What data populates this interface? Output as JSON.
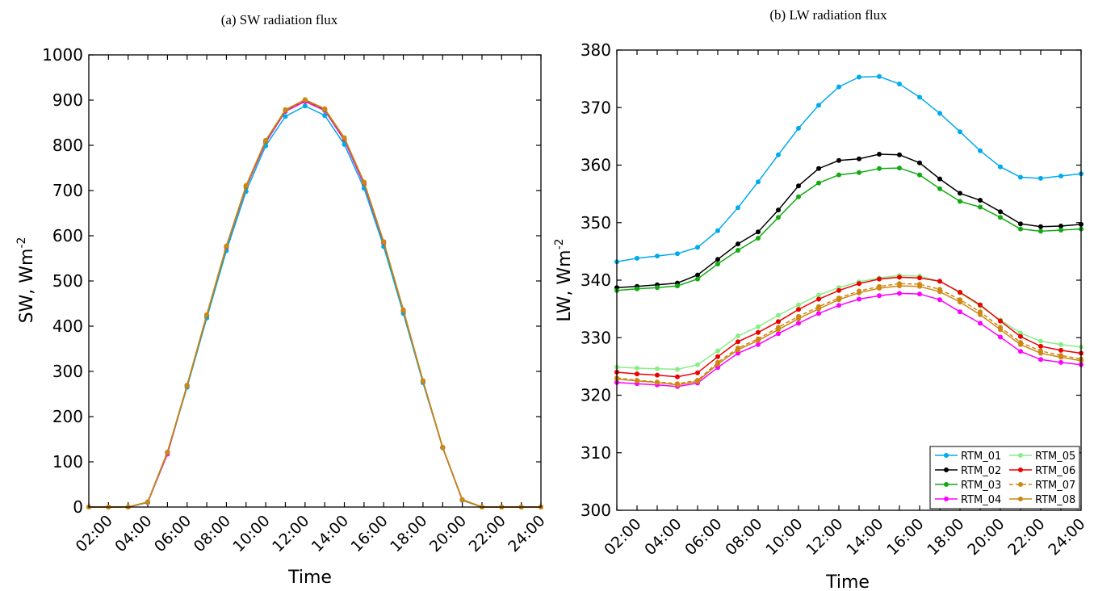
{
  "chart_data": [
    {
      "type": "line",
      "title": "(a) SW radiation flux",
      "xlabel": "Time",
      "ylabel_base": "SW, Wm",
      "ylabel_sup": "-2",
      "x": [
        "01:00",
        "02:00",
        "03:00",
        "04:00",
        "05:00",
        "06:00",
        "07:00",
        "08:00",
        "09:00",
        "10:00",
        "11:00",
        "12:00",
        "13:00",
        "14:00",
        "15:00",
        "16:00",
        "17:00",
        "18:00",
        "19:00",
        "20:00",
        "21:00",
        "22:00",
        "23:00",
        "24:00"
      ],
      "xticks": [
        "02:00",
        "04:00",
        "06:00",
        "08:00",
        "10:00",
        "12:00",
        "14:00",
        "16:00",
        "18:00",
        "20:00",
        "22:00",
        "24:00"
      ],
      "ylim": [
        0,
        1000
      ],
      "yticks": [
        "0",
        "100",
        "200",
        "300",
        "400",
        "500",
        "600",
        "700",
        "800",
        "900",
        "1000"
      ],
      "grid": false,
      "series": [
        {
          "name": "RTM_04",
          "color": "#ff00ff",
          "dashed": false,
          "values": [
            0,
            0,
            0,
            10,
            117,
            268,
            423,
            574,
            707,
            806,
            875,
            897,
            877,
            811,
            713,
            583,
            432,
            277,
            131,
            15,
            0,
            0,
            0,
            0
          ]
        },
        {
          "name": "RTM_01",
          "color": "#00aaee",
          "dashed": false,
          "values": [
            0,
            0,
            0,
            10,
            120,
            265,
            418,
            567,
            698,
            799,
            864,
            887,
            866,
            802,
            705,
            576,
            428,
            275,
            131,
            15,
            0,
            0,
            0,
            0
          ]
        },
        {
          "name": "RTM_02",
          "color": "#000000",
          "dashed": false,
          "values": [
            0,
            0,
            0,
            11,
            121,
            269,
            424,
            576,
            710,
            810,
            878,
            900,
            880,
            816,
            718,
            586,
            435,
            279,
            132,
            16,
            0,
            0,
            0,
            0
          ]
        },
        {
          "name": "RTM_03",
          "color": "#11aa11",
          "dashed": false,
          "values": [
            0,
            0,
            0,
            11,
            121,
            269,
            424,
            576,
            709,
            809,
            877,
            900,
            879,
            815,
            717,
            586,
            434,
            279,
            132,
            16,
            0,
            0,
            0,
            0
          ]
        },
        {
          "name": "RTM_05",
          "color": "#88ee88",
          "dashed": false,
          "values": [
            0,
            0,
            0,
            11,
            121,
            269,
            425,
            577,
            710,
            810,
            878,
            901,
            880,
            816,
            718,
            587,
            435,
            279,
            132,
            16,
            0,
            0,
            0,
            0
          ]
        },
        {
          "name": "RTM_06",
          "color": "#ee0000",
          "dashed": false,
          "values": [
            0,
            0,
            0,
            11,
            121,
            269,
            425,
            577,
            710,
            810,
            878,
            900,
            880,
            816,
            718,
            586,
            435,
            279,
            132,
            16,
            0,
            0,
            0,
            0
          ]
        },
        {
          "name": "RTM_07",
          "color": "#cc8811",
          "dashed": true,
          "values": [
            0,
            0,
            0,
            11,
            121,
            269,
            425,
            577,
            710,
            810,
            878,
            900,
            880,
            816,
            718,
            586,
            435,
            279,
            132,
            16,
            0,
            0,
            0,
            0
          ]
        },
        {
          "name": "RTM_08",
          "color": "#cc8811",
          "dashed": false,
          "values": [
            0,
            0,
            0,
            11,
            121,
            269,
            425,
            577,
            711,
            811,
            879,
            901,
            881,
            817,
            719,
            587,
            436,
            279,
            132,
            16,
            0,
            0,
            0,
            0
          ]
        }
      ]
    },
    {
      "type": "line",
      "title": "(b) LW radiation flux",
      "xlabel": "Time",
      "ylabel_base": "LW, Wm",
      "ylabel_sup": "-2",
      "x": [
        "01:00",
        "02:00",
        "03:00",
        "04:00",
        "05:00",
        "06:00",
        "07:00",
        "08:00",
        "09:00",
        "10:00",
        "11:00",
        "12:00",
        "13:00",
        "14:00",
        "15:00",
        "16:00",
        "17:00",
        "18:00",
        "19:00",
        "20:00",
        "21:00",
        "22:00",
        "23:00",
        "24:00"
      ],
      "xticks": [
        "02:00",
        "04:00",
        "06:00",
        "08:00",
        "10:00",
        "12:00",
        "14:00",
        "16:00",
        "18:00",
        "20:00",
        "22:00",
        "24:00"
      ],
      "ylim": [
        300,
        380
      ],
      "yticks": [
        "300",
        "310",
        "320",
        "330",
        "340",
        "350",
        "360",
        "370",
        "380"
      ],
      "grid": false,
      "legend_position": "bottom-right",
      "legend": [
        "RTM_01",
        "RTM_05",
        "RTM_02",
        "RTM_06",
        "RTM_03",
        "RTM_07",
        "RTM_04",
        "RTM_08"
      ],
      "series": [
        {
          "name": "RTM_01",
          "color": "#00aaee",
          "dashed": false,
          "values": [
            343.2,
            343.8,
            344.2,
            344.6,
            345.7,
            348.6,
            352.6,
            357.1,
            361.8,
            366.4,
            370.4,
            373.6,
            375.3,
            375.4,
            374.1,
            371.8,
            369.0,
            365.8,
            362.5,
            359.7,
            357.9,
            357.7,
            358.1,
            358.5
          ]
        },
        {
          "name": "RTM_02",
          "color": "#000000",
          "dashed": false,
          "values": [
            338.7,
            338.9,
            339.2,
            339.5,
            340.9,
            343.6,
            346.3,
            348.4,
            352.2,
            356.4,
            359.4,
            360.8,
            361.1,
            361.9,
            361.8,
            360.4,
            357.6,
            355.1,
            353.9,
            351.9,
            349.8,
            349.3,
            349.4,
            349.7
          ]
        },
        {
          "name": "RTM_03",
          "color": "#11aa11",
          "dashed": false,
          "values": [
            338.2,
            338.5,
            338.7,
            339.0,
            340.2,
            342.8,
            345.2,
            347.3,
            350.9,
            354.5,
            356.9,
            358.3,
            358.7,
            359.4,
            359.5,
            358.3,
            355.9,
            353.7,
            352.7,
            350.9,
            348.9,
            348.5,
            348.7,
            348.9
          ]
        },
        {
          "name": "RTM_04",
          "color": "#ff00ff",
          "dashed": false,
          "values": [
            322.2,
            322.0,
            321.8,
            321.5,
            322.1,
            324.8,
            327.3,
            328.8,
            330.7,
            332.5,
            334.2,
            335.6,
            336.7,
            337.3,
            337.7,
            337.6,
            336.6,
            334.5,
            332.5,
            330.1,
            327.6,
            326.2,
            325.7,
            325.3
          ]
        },
        {
          "name": "RTM_05",
          "color": "#88ee88",
          "dashed": false,
          "values": [
            324.9,
            324.7,
            324.6,
            324.5,
            325.3,
            327.7,
            330.3,
            331.9,
            333.9,
            335.7,
            337.4,
            338.7,
            339.7,
            340.4,
            340.8,
            340.7,
            339.8,
            337.8,
            335.5,
            333.1,
            330.8,
            329.4,
            328.8,
            328.4
          ]
        },
        {
          "name": "RTM_06",
          "color": "#ee0000",
          "dashed": false,
          "values": [
            324.0,
            323.7,
            323.5,
            323.2,
            323.9,
            326.7,
            329.3,
            330.9,
            332.8,
            334.9,
            336.7,
            338.2,
            339.4,
            340.2,
            340.5,
            340.4,
            339.8,
            337.9,
            335.7,
            332.9,
            330.2,
            328.5,
            327.8,
            327.3
          ]
        },
        {
          "name": "RTM_07",
          "color": "#cc8811",
          "dashed": true,
          "values": [
            323.0,
            322.6,
            322.3,
            322.0,
            322.6,
            325.7,
            328.2,
            329.8,
            331.8,
            333.7,
            335.4,
            336.9,
            338.1,
            338.9,
            339.4,
            339.3,
            338.4,
            336.6,
            334.5,
            331.8,
            329.2,
            327.7,
            326.9,
            326.3
          ]
        },
        {
          "name": "RTM_08",
          "color": "#cc8811",
          "dashed": false,
          "values": [
            322.8,
            322.5,
            322.2,
            321.8,
            322.4,
            325.4,
            327.9,
            329.5,
            331.4,
            333.3,
            335.0,
            336.6,
            337.8,
            338.6,
            339.0,
            338.9,
            338.0,
            336.2,
            334.0,
            331.4,
            328.8,
            327.3,
            326.6,
            326.0
          ]
        }
      ]
    }
  ]
}
